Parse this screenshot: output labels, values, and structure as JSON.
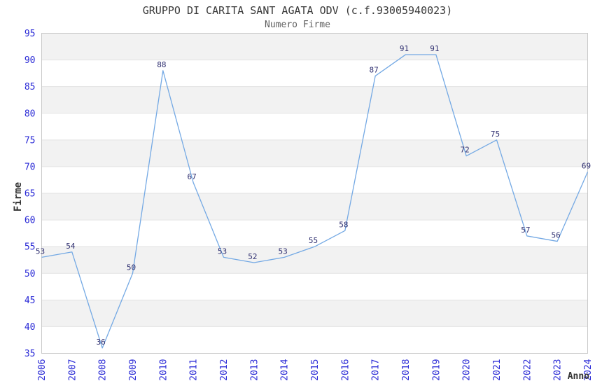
{
  "chart_data": {
    "type": "line",
    "title": "GRUPPO DI CARITA SANT AGATA ODV (c.f.93005940023)",
    "subtitle": "Numero Firme",
    "xlabel": "Anno",
    "ylabel": "Firme",
    "categories": [
      "2006",
      "2007",
      "2008",
      "2009",
      "2010",
      "2011",
      "2012",
      "2013",
      "2014",
      "2015",
      "2016",
      "2017",
      "2018",
      "2019",
      "2020",
      "2021",
      "2022",
      "2023",
      "2024"
    ],
    "values": [
      53,
      54,
      36,
      50,
      88,
      67,
      53,
      52,
      53,
      55,
      58,
      87,
      91,
      91,
      72,
      75,
      57,
      56,
      69
    ],
    "ylim": [
      35,
      95
    ],
    "ytick_step": 5,
    "yticks": [
      35,
      40,
      45,
      50,
      55,
      60,
      65,
      70,
      75,
      80,
      85,
      90,
      95
    ],
    "grid": true,
    "legend_position": "none",
    "band_fill_alternating": true,
    "colors": {
      "line": "#74a9e4",
      "tick_label": "#2929d6",
      "data_label": "#2f2f70",
      "title": "#383838",
      "subtitle": "#5f5f5f",
      "axis_title": "#333333",
      "band_gray": "#f2f2f2",
      "band_white": "#ffffff",
      "gridline": "#e3e3e3",
      "plot_border": "#c9c9c9",
      "background": "#ffffff"
    }
  }
}
